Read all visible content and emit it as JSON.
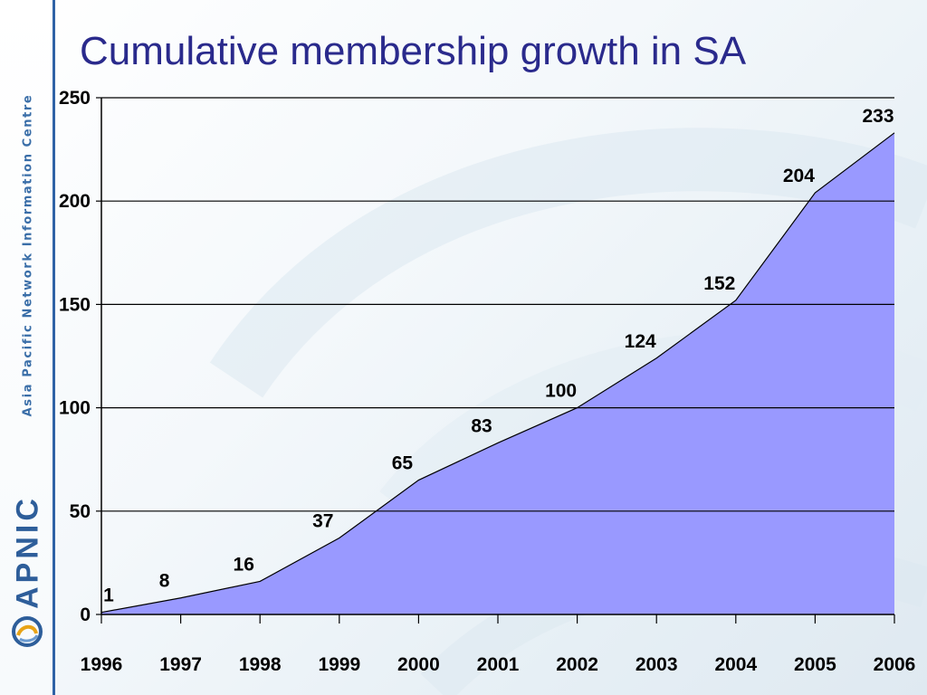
{
  "slide": {
    "title": "Cumulative membership growth in SA",
    "sidebar_text": "Asia Pacific Network Information Centre",
    "logo_text": "APNIC",
    "logo_icon": "apnic-swirl-icon",
    "colors": {
      "title": "#2a2a8c",
      "accent": "#2f62a6",
      "area": "#9999ff"
    }
  },
  "chart_data": {
    "type": "area",
    "x": [
      "1996",
      "1997",
      "1998",
      "1999",
      "2000",
      "2001",
      "2002",
      "2003",
      "2004",
      "2005",
      "2006"
    ],
    "values": [
      1,
      8,
      16,
      37,
      65,
      83,
      100,
      124,
      152,
      204,
      233
    ],
    "data_labels": [
      "1",
      "8",
      "16",
      "37",
      "65",
      "83",
      "100",
      "124",
      "152",
      "204",
      "233"
    ],
    "yticks": [
      0,
      50,
      100,
      150,
      200,
      250
    ],
    "ylim": [
      0,
      250
    ],
    "title": "Cumulative membership growth in SA",
    "grid": true,
    "legend": "none",
    "fill_color": "#9999ff"
  }
}
